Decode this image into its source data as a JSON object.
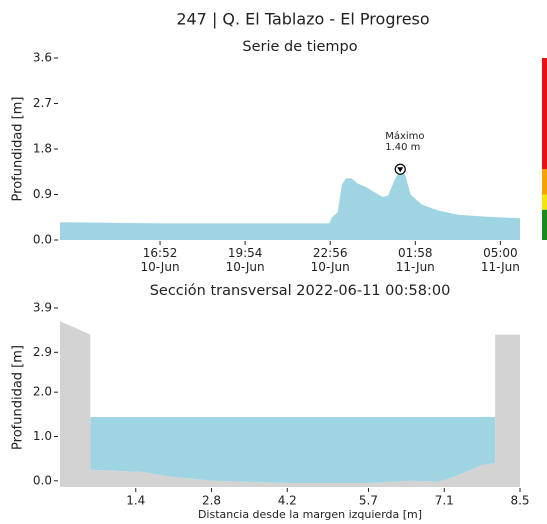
{
  "title": "247 | Q. El Tablazo - El Progreso",
  "chart_data": [
    {
      "type": "area",
      "title": "Serie de tiempo",
      "ylabel": "Profundidad [m]",
      "color": "#9fd4e2",
      "x": [
        13.3,
        15.0,
        17.0,
        19.0,
        21.0,
        22.9,
        23.0,
        23.2,
        23.35,
        23.5,
        23.7,
        23.9,
        24.2,
        24.5,
        24.8,
        25.0,
        25.2,
        25.43,
        25.6,
        25.8,
        26.2,
        26.8,
        27.5,
        28.5,
        29.7
      ],
      "values": [
        0.35,
        0.34,
        0.33,
        0.33,
        0.33,
        0.33,
        0.45,
        0.55,
        1.1,
        1.22,
        1.22,
        1.12,
        1.05,
        0.95,
        0.85,
        0.88,
        1.15,
        1.4,
        1.3,
        0.9,
        0.7,
        0.58,
        0.5,
        0.46,
        0.43
      ],
      "xlim": [
        13.3,
        29.7
      ],
      "xticks": [
        {
          "value": 16.867,
          "label": "16:52\n10-Jun"
        },
        {
          "value": 19.9,
          "label": "19:54\n10-Jun"
        },
        {
          "value": 22.933,
          "label": "22:56\n10-Jun"
        },
        {
          "value": 25.967,
          "label": "01:58\n11-Jun"
        },
        {
          "value": 29.0,
          "label": "05:00\n11-Jun"
        }
      ],
      "ylim": [
        0,
        3.6
      ],
      "yticks": [
        {
          "value": 0,
          "label": "0.0"
        },
        0.9,
        1.8,
        2.7,
        3.6
      ],
      "annotation": {
        "text": "Máximo\n1.40 m",
        "index": 17
      },
      "thresholds": [
        {
          "from": 0,
          "to": 0.6,
          "color": "#1a8a1a"
        },
        {
          "from": 0.6,
          "to": 0.9,
          "color": "#f5e60a"
        },
        {
          "from": 0.9,
          "to": 1.4,
          "color": "#f5a300"
        },
        {
          "from": 1.4,
          "to": 3.6,
          "color": "#e81010"
        }
      ]
    },
    {
      "type": "cross_section",
      "title": "Sección transversal 2022-06-11 00:58:00",
      "xlabel": "Distancia desde la margen izquierda [m]",
      "ylabel": "Profundidad [m]",
      "ground_color": "#d3d3d3",
      "water_color": "#9fd4e2",
      "x": [
        0,
        0.56,
        0.56,
        1.5,
        2.0,
        2.8,
        4.2,
        5.7,
        6.5,
        7.0,
        7.3,
        7.8,
        8.04,
        8.04,
        8.5
      ],
      "values": [
        3.6,
        3.3,
        0.25,
        0.2,
        0.1,
        0.0,
        -0.05,
        -0.05,
        0.0,
        -0.02,
        0.1,
        0.35,
        0.4,
        3.3,
        3.3
      ],
      "water_level": 1.44,
      "xlim": [
        0,
        8.5
      ],
      "xticks": [
        1.4,
        2.8,
        4.2,
        5.7,
        7.1,
        8.5
      ],
      "ylim": [
        -0.14,
        3.9
      ],
      "yticks": [
        {
          "value": 0,
          "label": "0.0"
        },
        {
          "value": 1,
          "label": "1.0"
        },
        {
          "value": 2,
          "label": "2.0"
        },
        2.9,
        3.9
      ]
    }
  ]
}
